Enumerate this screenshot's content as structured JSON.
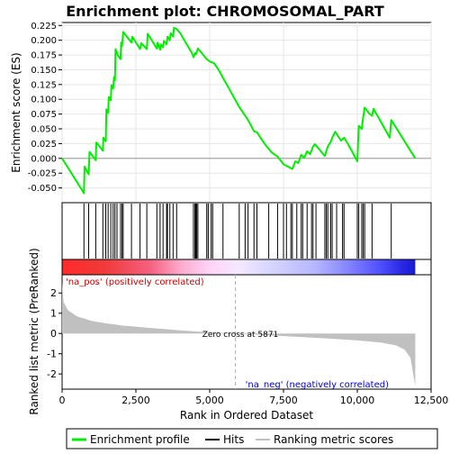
{
  "chart_data": {
    "type": "line",
    "title": "Enrichment plot: CHROMOSOMAL_PART",
    "xlabel": "Rank in Ordered Dataset",
    "ylabel_top": "Enrichment score (ES)",
    "ylabel_bottom": "Ranked list metric (PreRanked)",
    "x_range": [
      0,
      12500
    ],
    "n_genes": 11963,
    "es_ylim": [
      -0.075,
      0.23
    ],
    "es_ticks": [
      -0.05,
      -0.025,
      0.0,
      0.025,
      0.05,
      0.075,
      0.1,
      0.125,
      0.15,
      0.175,
      0.2,
      0.225
    ],
    "es_tick_labels": [
      "-0.050",
      "-0.025",
      "0.000",
      "0.025",
      "0.050",
      "0.075",
      "0.100",
      "0.125",
      "0.150",
      "0.175",
      "0.200",
      "0.225"
    ],
    "metric_ylim": [
      -2.75,
      2.9
    ],
    "metric_ticks": [
      -2,
      -1,
      0,
      1,
      2
    ],
    "metric_tick_labels": [
      "-2",
      "-1",
      "0",
      "1",
      "2"
    ],
    "x_ticks": [
      0,
      2500,
      5000,
      7500,
      10000,
      12500
    ],
    "x_tick_labels": [
      "0",
      "2,500",
      "5,000",
      "7,500",
      "10,000",
      "12,500"
    ],
    "series": [
      {
        "name": "Enrichment profile",
        "color": "#00ee00",
        "points": [
          [
            0,
            0.0
          ],
          [
            740,
            -0.059
          ],
          [
            760,
            -0.014
          ],
          [
            900,
            -0.027
          ],
          [
            930,
            0.011
          ],
          [
            1140,
            -0.003
          ],
          [
            1160,
            0.027
          ],
          [
            1380,
            0.013
          ],
          [
            1400,
            0.035
          ],
          [
            1480,
            0.029
          ],
          [
            1500,
            0.083
          ],
          [
            1560,
            0.077
          ],
          [
            1580,
            0.104
          ],
          [
            1650,
            0.098
          ],
          [
            1670,
            0.124
          ],
          [
            1730,
            0.118
          ],
          [
            1760,
            0.138
          ],
          [
            1790,
            0.132
          ],
          [
            1810,
            0.185
          ],
          [
            1860,
            0.179
          ],
          [
            1880,
            0.175
          ],
          [
            1980,
            0.168
          ],
          [
            2000,
            0.196
          ],
          [
            2030,
            0.19
          ],
          [
            2070,
            0.214
          ],
          [
            2350,
            0.196
          ],
          [
            2380,
            0.206
          ],
          [
            2640,
            0.185
          ],
          [
            2680,
            0.195
          ],
          [
            2870,
            0.185
          ],
          [
            2900,
            0.211
          ],
          [
            3210,
            0.186
          ],
          [
            3240,
            0.196
          ],
          [
            3320,
            0.184
          ],
          [
            3350,
            0.193
          ],
          [
            3420,
            0.188
          ],
          [
            3450,
            0.199
          ],
          [
            3540,
            0.193
          ],
          [
            3570,
            0.206
          ],
          [
            3650,
            0.2
          ],
          [
            3680,
            0.212
          ],
          [
            3760,
            0.206
          ],
          [
            3790,
            0.221
          ],
          [
            3880,
            0.219
          ],
          [
            4000,
            0.212
          ],
          [
            4400,
            0.178
          ],
          [
            4450,
            0.171
          ],
          [
            4500,
            0.178
          ],
          [
            4530,
            0.176
          ],
          [
            4560,
            0.18
          ],
          [
            4600,
            0.186
          ],
          [
            4900,
            0.168
          ],
          [
            5000,
            0.164
          ],
          [
            5150,
            0.161
          ],
          [
            5300,
            0.15
          ],
          [
            5700,
            0.114
          ],
          [
            6000,
            0.087
          ],
          [
            6300,
            0.065
          ],
          [
            6500,
            0.046
          ],
          [
            6600,
            0.044
          ],
          [
            6900,
            0.022
          ],
          [
            7100,
            0.01
          ],
          [
            7300,
            0.003
          ],
          [
            7500,
            -0.01
          ],
          [
            7800,
            -0.018
          ],
          [
            7900,
            -0.005
          ],
          [
            8000,
            -0.008
          ],
          [
            8100,
            0.006
          ],
          [
            8200,
            0.001
          ],
          [
            8300,
            0.012
          ],
          [
            8400,
            0.007
          ],
          [
            8500,
            0.02
          ],
          [
            8560,
            0.024
          ],
          [
            8700,
            0.016
          ],
          [
            8900,
            0.004
          ],
          [
            8950,
            0.012
          ],
          [
            9000,
            0.02
          ],
          [
            9100,
            0.028
          ],
          [
            9150,
            0.035
          ],
          [
            9250,
            0.045
          ],
          [
            9450,
            0.03
          ],
          [
            9550,
            0.035
          ],
          [
            9700,
            0.023
          ],
          [
            10000,
            -0.005
          ],
          [
            10050,
            0.055
          ],
          [
            10150,
            0.05
          ],
          [
            10200,
            0.07
          ],
          [
            10250,
            0.086
          ],
          [
            10400,
            0.076
          ],
          [
            10500,
            0.072
          ],
          [
            10550,
            0.084
          ],
          [
            11100,
            0.035
          ],
          [
            11150,
            0.065
          ],
          [
            11963,
            0.0
          ]
        ]
      }
    ],
    "hits": [
      740,
      900,
      1140,
      1380,
      1480,
      1560,
      1650,
      1730,
      1790,
      1860,
      1980,
      2030,
      2070,
      2350,
      2640,
      2870,
      3210,
      3320,
      3420,
      3540,
      3570,
      3650,
      3760,
      3880,
      4450,
      4500,
      4530,
      4560,
      4600,
      4900,
      4950,
      5050,
      5100,
      5450,
      6000,
      6200,
      6300,
      6500,
      6600,
      7000,
      7300,
      7500,
      7600,
      7750,
      7800,
      7950,
      8100,
      8150,
      8300,
      8450,
      8500,
      8600,
      8900,
      8950,
      9000,
      9100,
      9150,
      9300,
      9500,
      9550,
      10000,
      10050,
      10150,
      10200,
      10250,
      10500,
      11150
    ],
    "metric_curve": [
      [
        0,
        2.5
      ],
      [
        50,
        1.55
      ],
      [
        200,
        1.15
      ],
      [
        500,
        0.85
      ],
      [
        1000,
        0.62
      ],
      [
        1500,
        0.5
      ],
      [
        2000,
        0.4
      ],
      [
        3000,
        0.27
      ],
      [
        4000,
        0.15
      ],
      [
        5000,
        0.05
      ],
      [
        5871,
        0.0
      ],
      [
        7000,
        -0.09
      ],
      [
        8000,
        -0.17
      ],
      [
        9000,
        -0.25
      ],
      [
        10000,
        -0.34
      ],
      [
        10800,
        -0.45
      ],
      [
        11300,
        -0.58
      ],
      [
        11600,
        -0.8
      ],
      [
        11800,
        -1.2
      ],
      [
        11963,
        -2.6
      ]
    ],
    "zero_cross": 5871,
    "annotations": {
      "pos_label": "'na_pos' (positively correlated)",
      "neg_label": "'na_neg' (negatively correlated)",
      "zero_label": "Zero cross at 5871"
    },
    "heatmap_colors": [
      "#e41a1c",
      "#f25a6a",
      "#fbb4c8",
      "#ffd6f5",
      "#c8c8ff",
      "#6b6bff",
      "#2a2ae0"
    ],
    "legend": {
      "items": [
        {
          "label": "Enrichment profile",
          "color": "#00ee00"
        },
        {
          "label": "Hits",
          "color": "#000000"
        },
        {
          "label": "Ranking metric scores",
          "color": "#c0c0c0"
        }
      ]
    }
  }
}
